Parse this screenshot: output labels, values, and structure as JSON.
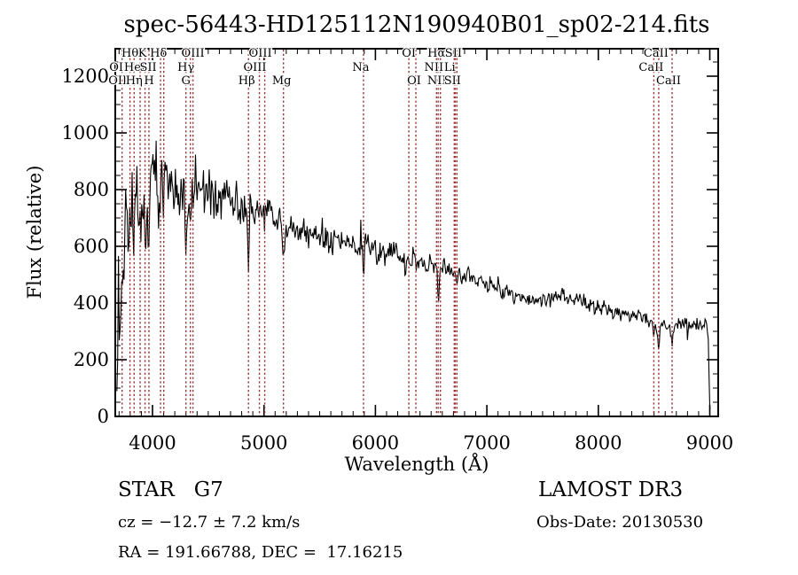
{
  "title": "spec-56443-HD125112N190940B01_sp02-214.fits",
  "annotations": {
    "object_type": "STAR   G7",
    "survey": "LAMOST DR3",
    "cz": "cz = −12.7 ± 7.2 km/s",
    "obs_date": "Obs-Date: 20130530",
    "coords": "RA = 191.66788, DEC =  17.16215"
  },
  "chart_data": {
    "type": "line",
    "title": "spec-56443-HD125112N190940B01_sp02-214.fits",
    "xlabel": "Wavelength (Å)",
    "ylabel": "Flux (relative)",
    "xlim": [
      3666,
      9075
    ],
    "ylim": [
      0,
      1297
    ],
    "xticks": [
      4000,
      5000,
      6000,
      7000,
      8000,
      9000
    ],
    "yticks": [
      0,
      200,
      400,
      600,
      800,
      1000,
      1200
    ],
    "x_minor_step": 100,
    "y_minor_step": 50,
    "grid": false,
    "legend": "none",
    "line_color": "#000000",
    "marker_color": "#993333",
    "x_start": 3680,
    "x_end": 9002,
    "seed": 20130530,
    "continuum": [
      [
        3678,
        350
      ],
      [
        3700,
        480
      ],
      [
        3740,
        620
      ],
      [
        3800,
        720
      ],
      [
        3860,
        760
      ],
      [
        3920,
        790
      ],
      [
        3980,
        820
      ],
      [
        4050,
        800
      ],
      [
        4150,
        810
      ],
      [
        4250,
        790
      ],
      [
        4350,
        800
      ],
      [
        4450,
        795
      ],
      [
        4550,
        780
      ],
      [
        4650,
        770
      ],
      [
        4750,
        755
      ],
      [
        4850,
        740
      ],
      [
        4950,
        725
      ],
      [
        5050,
        705
      ],
      [
        5175,
        672
      ],
      [
        5300,
        665
      ],
      [
        5450,
        650
      ],
      [
        5600,
        632
      ],
      [
        5750,
        615
      ],
      [
        5893,
        597
      ],
      [
        6000,
        582
      ],
      [
        6150,
        565
      ],
      [
        6300,
        550
      ],
      [
        6450,
        535
      ],
      [
        6563,
        522
      ],
      [
        6700,
        506
      ],
      [
        6850,
        490
      ],
      [
        7000,
        466
      ],
      [
        7150,
        450
      ],
      [
        7300,
        428
      ],
      [
        7450,
        412
      ],
      [
        7600,
        420
      ],
      [
        7660,
        426
      ],
      [
        7750,
        412
      ],
      [
        7900,
        400
      ],
      [
        8000,
        390
      ],
      [
        8100,
        374
      ],
      [
        8200,
        360
      ],
      [
        8350,
        346
      ],
      [
        8500,
        330
      ],
      [
        8650,
        320
      ],
      [
        8800,
        320
      ],
      [
        8930,
        332
      ],
      [
        8970,
        330
      ],
      [
        8985,
        300
      ],
      [
        8993,
        150
      ],
      [
        8998,
        40
      ],
      [
        9002,
        15
      ]
    ],
    "noise_sigma": [
      [
        3678,
        235
      ],
      [
        3750,
        205
      ],
      [
        3850,
        155
      ],
      [
        3950,
        125
      ],
      [
        4100,
        105
      ],
      [
        4300,
        90
      ],
      [
        4500,
        75
      ],
      [
        4800,
        62
      ],
      [
        5100,
        50
      ],
      [
        5400,
        44
      ],
      [
        5700,
        41
      ],
      [
        6000,
        38
      ],
      [
        6400,
        34
      ],
      [
        6800,
        30
      ],
      [
        7200,
        26
      ],
      [
        7600,
        24
      ],
      [
        8000,
        22
      ],
      [
        8400,
        22
      ],
      [
        8800,
        24
      ],
      [
        8990,
        14
      ],
      [
        9002,
        4
      ]
    ],
    "absorption": [
      [
        3727,
        110,
        5
      ],
      [
        3933,
        320,
        6
      ],
      [
        3968,
        260,
        6
      ],
      [
        4072,
        70,
        4
      ],
      [
        4101,
        175,
        5
      ],
      [
        4300,
        110,
        8
      ],
      [
        4340,
        190,
        5
      ],
      [
        4861,
        175,
        5
      ],
      [
        5175,
        115,
        10
      ],
      [
        5893,
        120,
        6
      ],
      [
        6563,
        92,
        5
      ],
      [
        8498,
        55,
        5
      ],
      [
        8542,
        78,
        6
      ],
      [
        8662,
        68,
        6
      ]
    ],
    "marker_wavelengths": [
      3727,
      3798,
      3835,
      3889,
      3933,
      3968,
      4072,
      4101,
      4300,
      4340,
      4363,
      4861,
      4959,
      5007,
      5175,
      5893,
      6300,
      6363,
      6548,
      6563,
      6583,
      6707,
      6716,
      6731,
      8498,
      8542,
      8662
    ],
    "spectral_lines": [
      {
        "label": "Hθ",
        "wl": 3798,
        "row": 0,
        "dx": 0
      },
      {
        "label": "K",
        "wl": 3933,
        "row": 0,
        "dx": -3
      },
      {
        "label": "Hδ",
        "wl": 4101,
        "row": 0,
        "dx": -6
      },
      {
        "label": "OIII",
        "wl": 4363,
        "row": 0,
        "dx": 0
      },
      {
        "label": "OIII",
        "wl": 5007,
        "row": 0,
        "dx": -5
      },
      {
        "label": "OI",
        "wl": 6300,
        "row": 0,
        "dx": 0
      },
      {
        "label": "Hα",
        "wl": 6563,
        "row": 0,
        "dx": -2
      },
      {
        "label": "SII",
        "wl": 6716,
        "row": 0,
        "dx": -2
      },
      {
        "label": "CaII",
        "wl": 8542,
        "row": 0,
        "dx": -3
      },
      {
        "label": "OII",
        "wl": 3727,
        "row": 1,
        "dx": -4
      },
      {
        "label": "HeI",
        "wl": 3889,
        "row": 1,
        "dx": -6
      },
      {
        "label": "SII",
        "wl": 4072,
        "row": 1,
        "dx": -14
      },
      {
        "label": "Hγ",
        "wl": 4340,
        "row": 1,
        "dx": -5
      },
      {
        "label": "OIII",
        "wl": 4959,
        "row": 1,
        "dx": -5
      },
      {
        "label": "Na",
        "wl": 5893,
        "row": 1,
        "dx": -3
      },
      {
        "label": "NII",
        "wl": 6548,
        "row": 1,
        "dx": -3
      },
      {
        "label": "Li",
        "wl": 6707,
        "row": 1,
        "dx": -5
      },
      {
        "label": "CaII",
        "wl": 8498,
        "row": 1,
        "dx": -3
      },
      {
        "label": "OII",
        "wl": 3727,
        "row": 2,
        "dx": -5
      },
      {
        "label": "Hη",
        "wl": 3835,
        "row": 2,
        "dx": 0
      },
      {
        "label": "H",
        "wl": 3968,
        "row": 2,
        "dx": 0
      },
      {
        "label": "G",
        "wl": 4300,
        "row": 2,
        "dx": 0
      },
      {
        "label": "Hβ",
        "wl": 4861,
        "row": 2,
        "dx": -2
      },
      {
        "label": "Mg",
        "wl": 5175,
        "row": 2,
        "dx": -2
      },
      {
        "label": "OI",
        "wl": 6363,
        "row": 2,
        "dx": -2
      },
      {
        "label": "NII",
        "wl": 6583,
        "row": 2,
        "dx": -4
      },
      {
        "label": "SII",
        "wl": 6731,
        "row": 2,
        "dx": -5
      },
      {
        "label": "CaII",
        "wl": 8662,
        "row": 2,
        "dx": -4
      }
    ]
  }
}
